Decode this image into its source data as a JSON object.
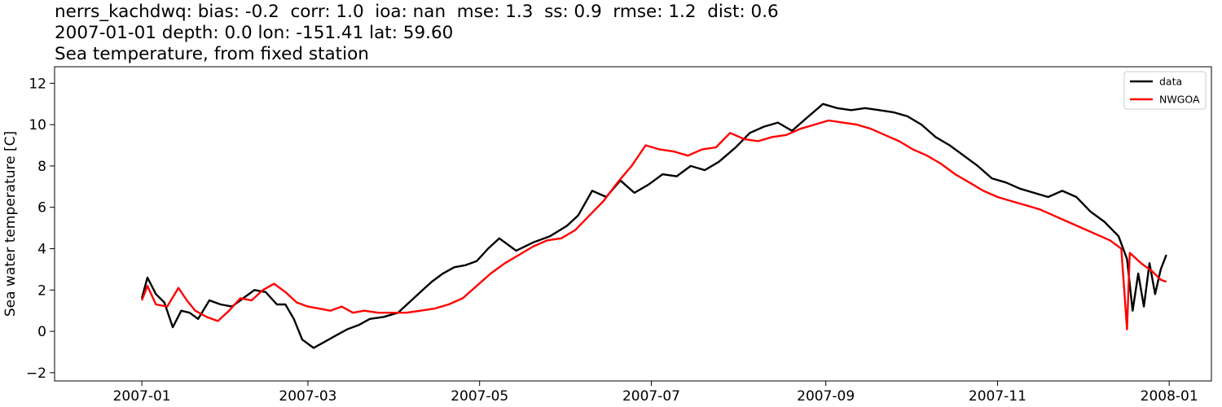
{
  "chart_data": {
    "type": "line",
    "title_lines": [
      "nerrs_kachdwq: bias: -0.2  corr: 1.0  ioa: nan  mse: 1.3  ss: 0.9  rmse: 1.2  dist: 0.6",
      "2007-01-01 depth: 0.0 lon: -151.41 lat: 59.60",
      "Sea temperature, from fixed station"
    ],
    "xlabel": "",
    "ylabel": "Sea water temperature [C]",
    "xlim": [
      "2006-12-01",
      "2008-01-16"
    ],
    "ylim": [
      -2.4,
      12.8
    ],
    "x_ticks": [
      "2007-01",
      "2007-03",
      "2007-05",
      "2007-07",
      "2007-09",
      "2007-11",
      "2008-01"
    ],
    "y_ticks": [
      -2,
      0,
      2,
      4,
      6,
      8,
      10,
      12
    ],
    "grid": false,
    "legend_position": "top-right",
    "series": [
      {
        "name": "data",
        "color": "#000000",
        "points": [
          [
            "2007-01-01",
            1.6
          ],
          [
            "2007-01-03",
            2.6
          ],
          [
            "2007-01-06",
            1.8
          ],
          [
            "2007-01-09",
            1.4
          ],
          [
            "2007-01-12",
            0.2
          ],
          [
            "2007-01-15",
            1.0
          ],
          [
            "2007-01-18",
            0.9
          ],
          [
            "2007-01-21",
            0.6
          ],
          [
            "2007-01-25",
            1.5
          ],
          [
            "2007-01-29",
            1.3
          ],
          [
            "2007-02-02",
            1.2
          ],
          [
            "2007-02-06",
            1.6
          ],
          [
            "2007-02-10",
            2.0
          ],
          [
            "2007-02-14",
            1.9
          ],
          [
            "2007-02-18",
            1.3
          ],
          [
            "2007-02-21",
            1.3
          ],
          [
            "2007-02-24",
            0.6
          ],
          [
            "2007-02-27",
            -0.4
          ],
          [
            "2007-03-03",
            -0.8
          ],
          [
            "2007-03-07",
            -0.5
          ],
          [
            "2007-03-11",
            -0.2
          ],
          [
            "2007-03-15",
            0.1
          ],
          [
            "2007-03-19",
            0.3
          ],
          [
            "2007-03-23",
            0.6
          ],
          [
            "2007-03-28",
            0.7
          ],
          [
            "2007-04-02",
            0.9
          ],
          [
            "2007-04-06",
            1.4
          ],
          [
            "2007-04-10",
            1.9
          ],
          [
            "2007-04-14",
            2.4
          ],
          [
            "2007-04-18",
            2.8
          ],
          [
            "2007-04-22",
            3.1
          ],
          [
            "2007-04-26",
            3.2
          ],
          [
            "2007-04-30",
            3.4
          ],
          [
            "2007-05-04",
            4.0
          ],
          [
            "2007-05-08",
            4.5
          ],
          [
            "2007-05-14",
            3.9
          ],
          [
            "2007-05-20",
            4.3
          ],
          [
            "2007-05-26",
            4.6
          ],
          [
            "2007-06-01",
            5.1
          ],
          [
            "2007-06-05",
            5.6
          ],
          [
            "2007-06-10",
            6.8
          ],
          [
            "2007-06-15",
            6.5
          ],
          [
            "2007-06-20",
            7.3
          ],
          [
            "2007-06-25",
            6.7
          ],
          [
            "2007-06-30",
            7.1
          ],
          [
            "2007-07-05",
            7.6
          ],
          [
            "2007-07-10",
            7.5
          ],
          [
            "2007-07-15",
            8.0
          ],
          [
            "2007-07-20",
            7.8
          ],
          [
            "2007-07-25",
            8.2
          ],
          [
            "2007-07-31",
            8.9
          ],
          [
            "2007-08-05",
            9.6
          ],
          [
            "2007-08-10",
            9.9
          ],
          [
            "2007-08-15",
            10.1
          ],
          [
            "2007-08-20",
            9.7
          ],
          [
            "2007-08-25",
            10.3
          ],
          [
            "2007-08-31",
            11.0
          ],
          [
            "2007-09-05",
            10.8
          ],
          [
            "2007-09-10",
            10.7
          ],
          [
            "2007-09-15",
            10.8
          ],
          [
            "2007-09-20",
            10.7
          ],
          [
            "2007-09-25",
            10.6
          ],
          [
            "2007-09-30",
            10.4
          ],
          [
            "2007-10-05",
            10.0
          ],
          [
            "2007-10-10",
            9.4
          ],
          [
            "2007-10-15",
            9.0
          ],
          [
            "2007-10-20",
            8.5
          ],
          [
            "2007-10-25",
            8.0
          ],
          [
            "2007-10-30",
            7.4
          ],
          [
            "2007-11-04",
            7.2
          ],
          [
            "2007-11-09",
            6.9
          ],
          [
            "2007-11-14",
            6.7
          ],
          [
            "2007-11-19",
            6.5
          ],
          [
            "2007-11-24",
            6.8
          ],
          [
            "2007-11-29",
            6.5
          ],
          [
            "2007-12-04",
            5.8
          ],
          [
            "2007-12-09",
            5.3
          ],
          [
            "2007-12-14",
            4.6
          ],
          [
            "2007-12-17",
            3.5
          ],
          [
            "2007-12-19",
            1.0
          ],
          [
            "2007-12-21",
            2.8
          ],
          [
            "2007-12-23",
            1.2
          ],
          [
            "2007-12-25",
            3.3
          ],
          [
            "2007-12-27",
            1.8
          ],
          [
            "2007-12-29",
            3.0
          ],
          [
            "2007-12-31",
            3.7
          ]
        ]
      },
      {
        "name": "NWGOA",
        "color": "#ff0000",
        "points": [
          [
            "2007-01-01",
            1.5
          ],
          [
            "2007-01-03",
            2.2
          ],
          [
            "2007-01-06",
            1.3
          ],
          [
            "2007-01-10",
            1.2
          ],
          [
            "2007-01-14",
            2.1
          ],
          [
            "2007-01-17",
            1.5
          ],
          [
            "2007-01-20",
            1.0
          ],
          [
            "2007-01-24",
            0.7
          ],
          [
            "2007-01-28",
            0.5
          ],
          [
            "2007-02-01",
            1.0
          ],
          [
            "2007-02-05",
            1.6
          ],
          [
            "2007-02-09",
            1.5
          ],
          [
            "2007-02-13",
            2.0
          ],
          [
            "2007-02-17",
            2.3
          ],
          [
            "2007-02-21",
            1.9
          ],
          [
            "2007-02-25",
            1.4
          ],
          [
            "2007-03-01",
            1.2
          ],
          [
            "2007-03-05",
            1.1
          ],
          [
            "2007-03-09",
            1.0
          ],
          [
            "2007-03-13",
            1.2
          ],
          [
            "2007-03-17",
            0.9
          ],
          [
            "2007-03-21",
            1.0
          ],
          [
            "2007-03-26",
            0.9
          ],
          [
            "2007-03-31",
            0.9
          ],
          [
            "2007-04-05",
            0.9
          ],
          [
            "2007-04-10",
            1.0
          ],
          [
            "2007-04-15",
            1.1
          ],
          [
            "2007-04-20",
            1.3
          ],
          [
            "2007-04-25",
            1.6
          ],
          [
            "2007-04-30",
            2.2
          ],
          [
            "2007-05-05",
            2.8
          ],
          [
            "2007-05-10",
            3.3
          ],
          [
            "2007-05-15",
            3.7
          ],
          [
            "2007-05-20",
            4.1
          ],
          [
            "2007-05-25",
            4.4
          ],
          [
            "2007-05-30",
            4.5
          ],
          [
            "2007-06-04",
            4.9
          ],
          [
            "2007-06-09",
            5.6
          ],
          [
            "2007-06-14",
            6.3
          ],
          [
            "2007-06-19",
            7.2
          ],
          [
            "2007-06-24",
            8.0
          ],
          [
            "2007-06-29",
            9.0
          ],
          [
            "2007-07-04",
            8.8
          ],
          [
            "2007-07-09",
            8.7
          ],
          [
            "2007-07-14",
            8.5
          ],
          [
            "2007-07-19",
            8.8
          ],
          [
            "2007-07-24",
            8.9
          ],
          [
            "2007-07-29",
            9.6
          ],
          [
            "2007-08-03",
            9.3
          ],
          [
            "2007-08-08",
            9.2
          ],
          [
            "2007-08-13",
            9.4
          ],
          [
            "2007-08-18",
            9.5
          ],
          [
            "2007-08-23",
            9.8
          ],
          [
            "2007-08-28",
            10.0
          ],
          [
            "2007-09-02",
            10.2
          ],
          [
            "2007-09-07",
            10.1
          ],
          [
            "2007-09-12",
            10.0
          ],
          [
            "2007-09-17",
            9.8
          ],
          [
            "2007-09-22",
            9.5
          ],
          [
            "2007-09-27",
            9.2
          ],
          [
            "2007-10-02",
            8.8
          ],
          [
            "2007-10-07",
            8.5
          ],
          [
            "2007-10-12",
            8.1
          ],
          [
            "2007-10-17",
            7.6
          ],
          [
            "2007-10-22",
            7.2
          ],
          [
            "2007-10-27",
            6.8
          ],
          [
            "2007-11-01",
            6.5
          ],
          [
            "2007-11-06",
            6.3
          ],
          [
            "2007-11-11",
            6.1
          ],
          [
            "2007-11-16",
            5.9
          ],
          [
            "2007-11-21",
            5.6
          ],
          [
            "2007-11-26",
            5.3
          ],
          [
            "2007-12-01",
            5.0
          ],
          [
            "2007-12-06",
            4.7
          ],
          [
            "2007-12-11",
            4.4
          ],
          [
            "2007-12-15",
            4.0
          ],
          [
            "2007-12-17",
            0.1
          ],
          [
            "2007-12-18",
            3.8
          ],
          [
            "2007-12-22",
            3.3
          ],
          [
            "2007-12-26",
            2.9
          ],
          [
            "2007-12-29",
            2.5
          ],
          [
            "2007-12-31",
            2.4
          ]
        ]
      }
    ]
  }
}
